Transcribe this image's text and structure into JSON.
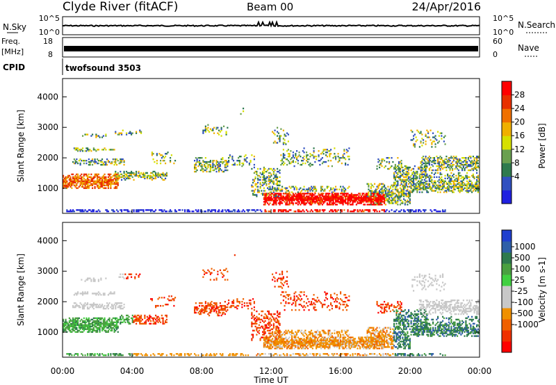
{
  "header": {
    "station": "Clyde River (fitACF)",
    "beam": "Beam 00",
    "date": "24/Apr/2016"
  },
  "strips": {
    "nsky_label": "N.Sky",
    "nsearch_label": "N.Search",
    "freq_label": "Freq.",
    "freq_unit": "[MHz]",
    "nave_label": "Nave",
    "cpid_label": "CPID",
    "cpid_value": "twofsound 3503",
    "noise_ticks_left": [
      "10^5",
      "10^0"
    ],
    "noise_ticks_right": [
      "10^5",
      "10^0"
    ],
    "freq_ticks": [
      "18",
      "8"
    ],
    "nave_ticks": [
      "60",
      "0"
    ]
  },
  "chart_data": [
    {
      "type": "heatmap",
      "name": "power",
      "xlabel": "",
      "ylabel": "Slant Range [km]",
      "colorbar_label": "Power [dB]",
      "colorbar_ticks": [
        "4",
        "8",
        "12",
        "16",
        "20",
        "24",
        "28"
      ],
      "colorbar_colors": [
        "#2020e0",
        "#3050c0",
        "#2e7a4e",
        "#6aa050",
        "#d6e000",
        "#f0b000",
        "#f07000",
        "#e83000",
        "#ff0000"
      ],
      "xlim": [
        0,
        24
      ],
      "ylim": [
        180,
        4600
      ],
      "yticks": [
        1000,
        2000,
        3000,
        4000
      ],
      "grid": false
    },
    {
      "type": "heatmap",
      "name": "velocity",
      "xlabel": "Time UT",
      "ylabel": "Slant Range [km]",
      "colorbar_label": "Velocity [m s-1]",
      "colorbar_ticks": [
        "1000",
        "500",
        "100",
        "25",
        "-25",
        "-100",
        "-500",
        "-1000"
      ],
      "colorbar_colors": [
        "#1f3fcf",
        "#2e5fa8",
        "#2e7a4e",
        "#4aa040",
        "#40d040",
        "#c8c8c8",
        "#c8c8c8",
        "#f09000",
        "#f06000",
        "#f03000",
        "#ff0000"
      ],
      "xlim": [
        0,
        24
      ],
      "ylim": [
        180,
        4600
      ],
      "yticks": [
        1000,
        2000,
        3000,
        4000
      ],
      "xticks": [
        "00:00",
        "04:00",
        "08:00",
        "12:00",
        "16:00",
        "20:00",
        "00:00"
      ],
      "grid": false
    }
  ]
}
